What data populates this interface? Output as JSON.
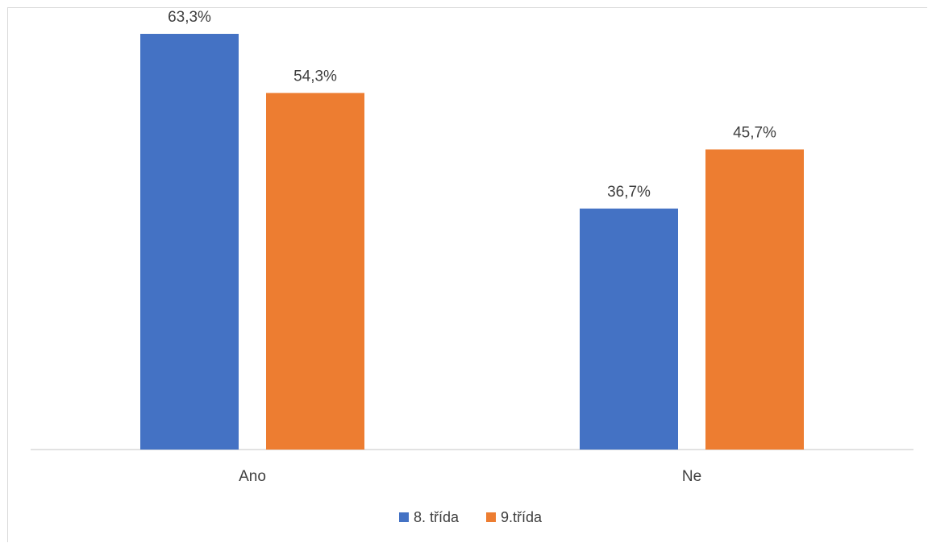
{
  "chart_data": {
    "type": "bar",
    "title": "",
    "xlabel": "",
    "ylabel": "",
    "categories": [
      "Ano",
      "Ne"
    ],
    "series": [
      {
        "name": "8. třída",
        "values": [
          63.3,
          36.7
        ],
        "labels": [
          "63,3%",
          "36,7%"
        ],
        "color": "#4472c4"
      },
      {
        "name": "9.třída",
        "values": [
          54.3,
          45.7
        ],
        "labels": [
          "54,3%",
          "45,7%"
        ],
        "color": "#ed7d31"
      }
    ],
    "ylim": [
      0,
      66
    ],
    "grid": false,
    "legend": "bottom"
  }
}
